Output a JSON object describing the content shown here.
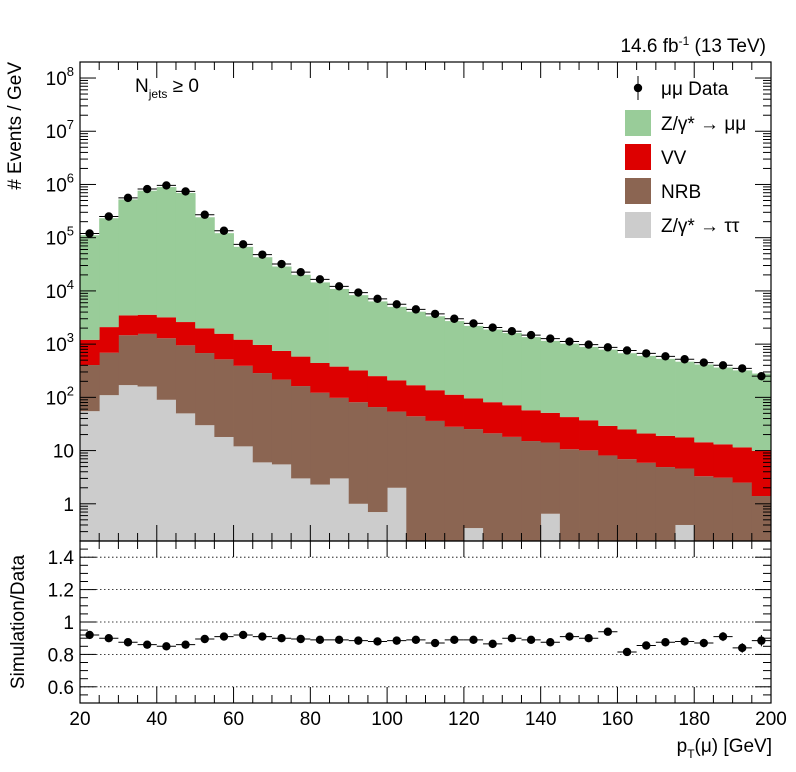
{
  "lumi_label": "14.6 fb",
  "lumi_sup": "-1",
  "lumi_energy": " (13 TeV)",
  "selection": {
    "main": "N",
    "sub": "jets",
    "rest": " ≥ 0"
  },
  "chart_data": [
    {
      "type": "bar",
      "stacked": true,
      "log_y": true,
      "x_edges": [
        20,
        25,
        30,
        35,
        40,
        45,
        50,
        55,
        60,
        65,
        70,
        75,
        80,
        85,
        90,
        95,
        100,
        105,
        110,
        115,
        120,
        125,
        130,
        135,
        140,
        145,
        150,
        155,
        160,
        165,
        170,
        175,
        180,
        185,
        190,
        195,
        200
      ],
      "xlim": [
        20,
        200
      ],
      "ylim": [
        0.2,
        200000000
      ],
      "ylabel": "# Events / GeV",
      "y_ticks": [
        {
          "v": 1,
          "base": "1",
          "exp": ""
        },
        {
          "v": 10,
          "base": "10",
          "exp": ""
        },
        {
          "v": 100,
          "base": "10",
          "exp": "2"
        },
        {
          "v": 1000,
          "base": "10",
          "exp": "3"
        },
        {
          "v": 10000,
          "base": "10",
          "exp": "4"
        },
        {
          "v": 100000,
          "base": "10",
          "exp": "5"
        },
        {
          "v": 1000000,
          "base": "10",
          "exp": "6"
        },
        {
          "v": 10000000,
          "base": "10",
          "exp": "7"
        },
        {
          "v": 100000000,
          "base": "10",
          "exp": "8"
        }
      ],
      "stack_order": [
        "tautau",
        "nrb",
        "vv",
        "zmumu"
      ],
      "series": [
        {
          "key": "tautau",
          "name": "Z/γ* → ττ",
          "color": "#cccccc",
          "values": [
            55,
            110,
            170,
            160,
            90,
            50,
            30,
            18,
            12,
            6,
            5.5,
            3,
            2.3,
            3,
            1.0,
            0.7,
            2.0,
            0.1,
            0.1,
            0.1,
            0.35,
            0.1,
            0.1,
            0.1,
            0.65,
            0.1,
            0.1,
            0.1,
            0.1,
            0.1,
            0.1,
            0.4,
            0.1,
            0.1,
            0.1,
            0.1
          ]
        },
        {
          "key": "nrb",
          "name": "NRB",
          "color": "#8b6552",
          "values": [
            350,
            580,
            1300,
            1400,
            1200,
            900,
            650,
            500,
            380,
            280,
            210,
            160,
            120,
            95,
            80,
            65,
            52,
            44,
            36,
            28,
            25,
            21,
            18,
            15,
            13.5,
            10.5,
            10,
            8,
            6.8,
            5.8,
            4.8,
            4.2,
            3.2,
            3.0,
            2.4,
            1.3
          ]
        },
        {
          "key": "vv",
          "name": "VV",
          "color": "#dd0000",
          "values": [
            800,
            1400,
            2000,
            2000,
            1900,
            1650,
            1300,
            1050,
            820,
            680,
            530,
            420,
            320,
            280,
            240,
            185,
            155,
            125,
            100,
            84,
            70,
            60,
            53,
            42,
            37,
            32,
            27,
            21,
            18,
            15,
            14,
            13,
            11,
            10,
            9,
            8.5
          ]
        },
        {
          "key": "zmumu",
          "name": "Z/γ* → μμ",
          "color": "#99cc99",
          "values": [
            110000,
            230000,
            520000,
            760000,
            890000,
            690000,
            240000,
            120000,
            66000,
            42000,
            28000,
            19500,
            14000,
            10500,
            8000,
            6100,
            4800,
            3900,
            3200,
            2600,
            2100,
            1800,
            1550,
            1300,
            1100,
            980,
            850,
            760,
            650,
            580,
            510,
            450,
            400,
            350,
            310,
            270
          ]
        }
      ],
      "data_points": {
        "name": "μμ Data",
        "x": [
          22.5,
          27.5,
          32.5,
          37.5,
          42.5,
          47.5,
          52.5,
          57.5,
          62.5,
          67.5,
          72.5,
          77.5,
          82.5,
          87.5,
          92.5,
          97.5,
          102.5,
          107.5,
          112.5,
          117.5,
          122.5,
          127.5,
          132.5,
          137.5,
          142.5,
          147.5,
          152.5,
          157.5,
          162.5,
          167.5,
          172.5,
          177.5,
          182.5,
          187.5,
          192.5,
          197.5
        ],
        "y": [
          120000,
          250000,
          560000,
          820000,
          960000,
          740000,
          270000,
          135000,
          75000,
          48000,
          32000,
          22500,
          16500,
          12200,
          9300,
          7100,
          5600,
          4500,
          3700,
          3000,
          2450,
          2050,
          1750,
          1480,
          1270,
          1120,
          980,
          870,
          760,
          670,
          590,
          520,
          450,
          400,
          350,
          250
        ]
      }
    },
    {
      "type": "scatter",
      "xlabel_main": "p",
      "xlabel_sub": "T",
      "xlabel_rest": "(μ) [GeV]",
      "ylabel": "Simulation/Data",
      "xlim": [
        20,
        200
      ],
      "ylim": [
        0.5,
        1.5
      ],
      "x_ticks": [
        20,
        40,
        60,
        80,
        100,
        120,
        140,
        160,
        180,
        200
      ],
      "y_ticks": [
        0.6,
        0.8,
        1,
        1.2,
        1.4
      ],
      "grid_lines": [
        0.6,
        0.8,
        1.0,
        1.2,
        1.4
      ],
      "x": [
        22.5,
        27.5,
        32.5,
        37.5,
        42.5,
        47.5,
        52.5,
        57.5,
        62.5,
        67.5,
        72.5,
        77.5,
        82.5,
        87.5,
        92.5,
        97.5,
        102.5,
        107.5,
        112.5,
        117.5,
        122.5,
        127.5,
        132.5,
        137.5,
        142.5,
        147.5,
        152.5,
        157.5,
        162.5,
        167.5,
        172.5,
        177.5,
        182.5,
        187.5,
        192.5,
        197.5
      ],
      "y": [
        0.92,
        0.9,
        0.875,
        0.86,
        0.85,
        0.86,
        0.895,
        0.91,
        0.92,
        0.91,
        0.9,
        0.895,
        0.89,
        0.89,
        0.885,
        0.88,
        0.885,
        0.89,
        0.87,
        0.89,
        0.89,
        0.865,
        0.9,
        0.89,
        0.875,
        0.91,
        0.9,
        0.94,
        0.815,
        0.855,
        0.875,
        0.88,
        0.87,
        0.91,
        0.84,
        0.885
      ],
      "yerr": [
        0.01,
        0.01,
        0.01,
        0.01,
        0.01,
        0.01,
        0.01,
        0.01,
        0.01,
        0.01,
        0.01,
        0.01,
        0.01,
        0.01,
        0.01,
        0.01,
        0.01,
        0.01,
        0.01,
        0.01,
        0.01,
        0.012,
        0.012,
        0.012,
        0.014,
        0.015,
        0.016,
        0.018,
        0.02,
        0.02,
        0.022,
        0.024,
        0.026,
        0.028,
        0.03,
        0.035
      ]
    }
  ]
}
